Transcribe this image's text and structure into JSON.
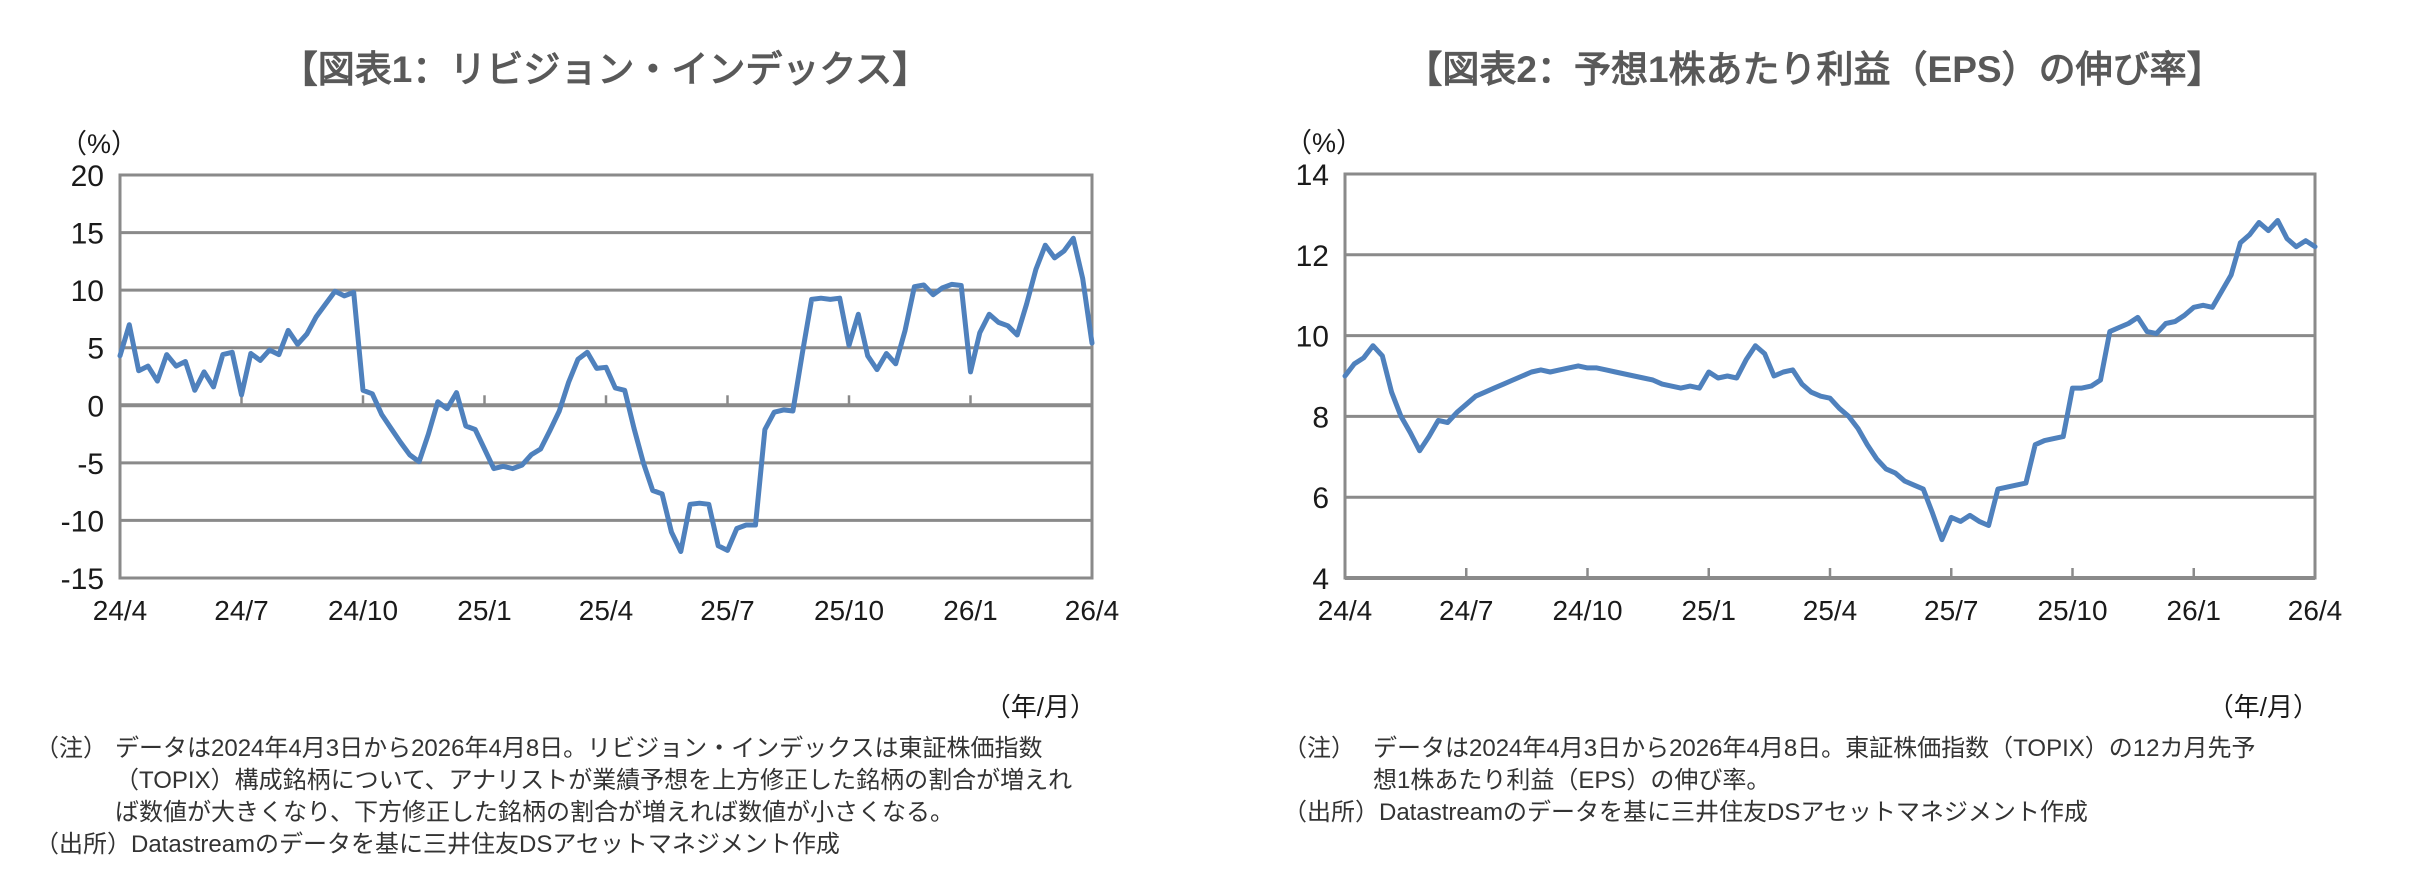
{
  "chart_data": [
    {
      "type": "line",
      "title": "【図表1：リビジョン・インデックス】",
      "ylabel": "（%）",
      "xlabel": "（年/月）",
      "x_tick_labels": [
        "24/4",
        "24/7",
        "24/10",
        "25/1",
        "25/4",
        "25/7",
        "25/10",
        "26/1",
        "26/4"
      ],
      "ylim": [
        -15,
        20
      ],
      "yticks": [
        20,
        15,
        10,
        5,
        0,
        -5,
        -10,
        -15
      ],
      "axis_cross_y": 0,
      "grid": true,
      "legend": "none",
      "line_color": "#4F81BD",
      "grid_color": "#8a8a8a",
      "series": [
        {
          "name": "リビジョン・インデックス",
          "values": [
            4.3,
            7.0,
            3.0,
            3.4,
            2.1,
            4.4,
            3.4,
            3.8,
            1.3,
            2.9,
            1.6,
            4.4,
            4.6,
            0.9,
            4.5,
            3.9,
            4.8,
            4.4,
            6.5,
            5.3,
            6.2,
            7.7,
            8.8,
            9.9,
            9.5,
            9.8,
            1.3,
            1.0,
            -0.8,
            -2.0,
            -3.2,
            -4.3,
            -4.9,
            -2.5,
            0.3,
            -0.3,
            1.1,
            -1.8,
            -2.1,
            -3.8,
            -5.5,
            -5.3,
            -5.5,
            -5.2,
            -4.3,
            -3.8,
            -2.2,
            -0.5,
            2.0,
            4.0,
            4.6,
            3.2,
            3.3,
            1.5,
            1.3,
            -2.0,
            -5.0,
            -7.4,
            -7.7,
            -11.0,
            -12.7,
            -8.6,
            -8.5,
            -8.6,
            -12.2,
            -12.6,
            -10.7,
            -10.4,
            -10.4,
            -2.1,
            -0.6,
            -0.4,
            -0.5,
            4.5,
            9.2,
            9.3,
            9.2,
            9.3,
            5.2,
            7.9,
            4.3,
            3.1,
            4.5,
            3.6,
            6.5,
            10.3,
            10.45,
            9.6,
            10.2,
            10.5,
            10.4,
            2.9,
            6.3,
            7.9,
            7.2,
            6.9,
            6.1,
            8.8,
            11.8,
            13.9,
            12.8,
            13.4,
            14.5,
            11.0,
            5.4
          ]
        }
      ],
      "note_label": "（注）",
      "note_text": "データは2024年4月3日から2026年4月8日。リビジョン・インデックスは東証株価指数\n（TOPIX）構成銘柄について、アナリストが業績予想を上方修正した銘柄の割合が増えれ\nば数値が大きくなり、下方修正した銘柄の割合が増えれば数値が小さくなる。",
      "source_label": "（出所）",
      "source_text": "Datastreamのデータを基に三井住友DSアセットマネジメント作成"
    },
    {
      "type": "line",
      "title": "【図表2：予想1株あたり利益（EPS）の伸び率】",
      "ylabel": "（%）",
      "xlabel": "（年/月）",
      "x_tick_labels": [
        "24/4",
        "24/7",
        "24/10",
        "25/1",
        "25/4",
        "25/7",
        "25/10",
        "26/1",
        "26/4"
      ],
      "ylim": [
        4,
        14
      ],
      "yticks": [
        14,
        12,
        10,
        8,
        6,
        4
      ],
      "axis_cross_y": 4,
      "grid": true,
      "legend": "none",
      "line_color": "#4F81BD",
      "grid_color": "#8a8a8a",
      "series": [
        {
          "name": "予想1株あたり利益（EPS）の伸び率",
          "values": [
            9.0,
            9.3,
            9.45,
            9.75,
            9.5,
            8.6,
            8.0,
            7.6,
            7.15,
            7.5,
            7.9,
            7.85,
            8.1,
            8.3,
            8.5,
            8.6,
            8.7,
            8.8,
            8.9,
            9.0,
            9.1,
            9.15,
            9.1,
            9.15,
            9.2,
            9.25,
            9.2,
            9.2,
            9.15,
            9.1,
            9.05,
            9.0,
            8.95,
            8.9,
            8.8,
            8.75,
            8.7,
            8.75,
            8.7,
            9.1,
            8.95,
            9.0,
            8.95,
            9.4,
            9.75,
            9.55,
            9.0,
            9.1,
            9.15,
            8.8,
            8.6,
            8.5,
            8.45,
            8.2,
            8.0,
            7.7,
            7.3,
            6.95,
            6.7,
            6.6,
            6.4,
            6.3,
            6.2,
            5.6,
            4.95,
            5.5,
            5.4,
            5.55,
            5.4,
            5.3,
            6.2,
            6.25,
            6.3,
            6.35,
            7.3,
            7.4,
            7.45,
            7.5,
            8.7,
            8.7,
            8.75,
            8.9,
            10.1,
            10.2,
            10.3,
            10.45,
            10.1,
            10.05,
            10.3,
            10.35,
            10.5,
            10.7,
            10.75,
            10.7,
            11.1,
            11.5,
            12.3,
            12.5,
            12.8,
            12.6,
            12.85,
            12.4,
            12.2,
            12.35,
            12.2
          ]
        }
      ],
      "note_label": "（注）",
      "note_text": "データは2024年4月3日から2026年4月8日。東証株価指数（TOPIX）の12カ月先予\n想1株あたり利益（EPS）の伸び率。",
      "source_label": "（出所）",
      "source_text": "Datastreamのデータを基に三井住友DSアセットマネジメント作成"
    }
  ]
}
